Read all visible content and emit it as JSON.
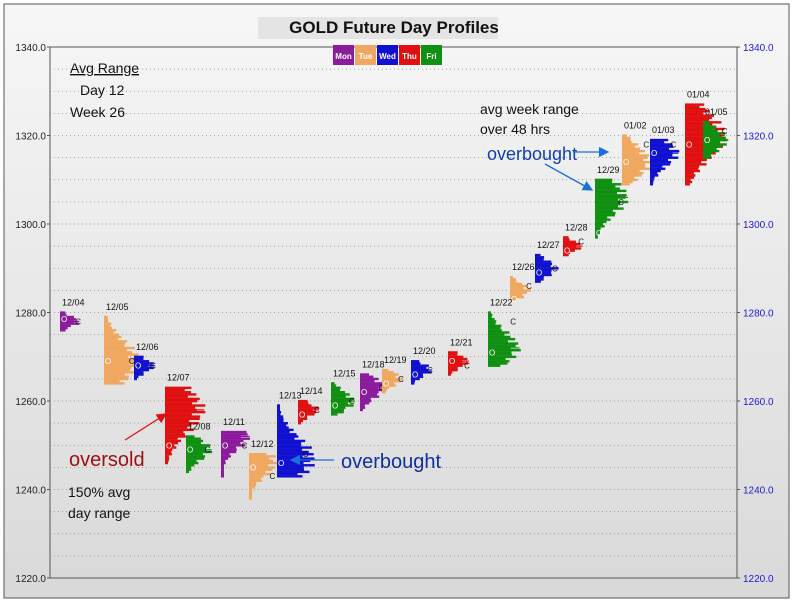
{
  "chart_data": {
    "type": "market-profile",
    "title": "GOLD Future Day Profiles",
    "legend": {
      "placement": "top-center",
      "items": [
        {
          "label": "Mon",
          "color": "#8b1a9c"
        },
        {
          "label": "Tue",
          "color": "#f0a860"
        },
        {
          "label": "Wed",
          "color": "#1010d0"
        },
        {
          "label": "Thu",
          "color": "#e01010"
        },
        {
          "label": "Fri",
          "color": "#109010"
        }
      ]
    },
    "ylim": [
      1220,
      1340
    ],
    "yticks": [
      "1220.0",
      "1240.0",
      "1260.0",
      "1280.0",
      "1300.0",
      "1320.0",
      "1340.0"
    ],
    "grid": true,
    "days": [
      {
        "date": "12/04",
        "weekday": "Mon",
        "high": 1280.0,
        "low": 1276.0,
        "poc": 1278.0,
        "open": 1278.5,
        "close": 1278.0
      },
      {
        "date": "12/05",
        "weekday": "Tue",
        "high": 1279.0,
        "low": 1264.0,
        "poc": 1269.0,
        "open": 1269.0,
        "close": 1269.0
      },
      {
        "date": "12/06",
        "weekday": "Wed",
        "high": 1270.0,
        "low": 1265.0,
        "poc": 1268.0,
        "open": 1268.0,
        "close": 1268.0
      },
      {
        "date": "12/07",
        "weekday": "Thu",
        "high": 1263.0,
        "low": 1246.0,
        "poc": 1258.0,
        "open": 1250.0,
        "close": 1249.0
      },
      {
        "date": "12/08",
        "weekday": "Fri",
        "high": 1252.0,
        "low": 1244.0,
        "poc": 1249.0,
        "open": 1249.0,
        "close": 1249.0
      },
      {
        "date": "12/11",
        "weekday": "Mon",
        "high": 1253.0,
        "low": 1243.0,
        "poc": 1252.0,
        "open": 1250.0,
        "close": 1250.0
      },
      {
        "date": "12/12",
        "weekday": "Tue",
        "high": 1248.0,
        "low": 1238.0,
        "poc": 1246.0,
        "open": 1245.0,
        "close": 1243.0
      },
      {
        "date": "12/13",
        "weekday": "Wed",
        "high": 1259.0,
        "low": 1243.0,
        "poc": 1247.0,
        "open": 1246.0,
        "close": 1248.0
      },
      {
        "date": "12/14",
        "weekday": "Thu",
        "high": 1260.0,
        "low": 1255.0,
        "poc": 1258.0,
        "open": 1257.0,
        "close": 1258.0
      },
      {
        "date": "12/15",
        "weekday": "Fri",
        "high": 1264.0,
        "low": 1257.0,
        "poc": 1260.0,
        "open": 1259.0,
        "close": 1260.0
      },
      {
        "date": "12/18",
        "weekday": "Mon",
        "high": 1266.0,
        "low": 1258.0,
        "poc": 1263.0,
        "open": 1262.0,
        "close": 1263.0
      },
      {
        "date": "12/19",
        "weekday": "Tue",
        "high": 1267.0,
        "low": 1262.0,
        "poc": 1265.0,
        "open": 1264.0,
        "close": 1265.0
      },
      {
        "date": "12/20",
        "weekday": "Wed",
        "high": 1269.0,
        "low": 1264.0,
        "poc": 1267.0,
        "open": 1266.0,
        "close": 1267.0
      },
      {
        "date": "12/21",
        "weekday": "Thu",
        "high": 1271.0,
        "low": 1266.0,
        "poc": 1269.0,
        "open": 1269.0,
        "close": 1268.0
      },
      {
        "date": "12/22",
        "weekday": "Fri",
        "high": 1280.0,
        "low": 1268.0,
        "poc": 1272.0,
        "open": 1271.0,
        "close": 1278.0
      },
      {
        "date": "12/26",
        "weekday": "Tue",
        "high": 1288.0,
        "low": 1283.0,
        "poc": 1285.0,
        "open": 1283.0,
        "close": 1286.0
      },
      {
        "date": "12/27",
        "weekday": "Wed",
        "high": 1293.0,
        "low": 1287.0,
        "poc": 1290.0,
        "open": 1289.0,
        "close": 1290.0
      },
      {
        "date": "12/28",
        "weekday": "Thu",
        "high": 1297.0,
        "low": 1293.0,
        "poc": 1295.0,
        "open": 1294.0,
        "close": 1296.0
      },
      {
        "date": "12/29",
        "weekday": "Fri",
        "high": 1310.0,
        "low": 1297.0,
        "poc": 1306.0,
        "open": 1298.0,
        "close": 1305.0
      },
      {
        "date": "01/02",
        "weekday": "Tue",
        "high": 1320.0,
        "low": 1309.0,
        "poc": 1314.0,
        "open": 1314.0,
        "close": 1318.0
      },
      {
        "date": "01/03",
        "weekday": "Wed",
        "high": 1319.0,
        "low": 1309.0,
        "poc": 1316.0,
        "open": 1316.0,
        "close": 1318.0
      },
      {
        "date": "01/04",
        "weekday": "Thu",
        "high": 1327.0,
        "low": 1309.0,
        "poc": 1320.0,
        "open": 1318.0,
        "close": 1320.0
      },
      {
        "date": "01/05",
        "weekday": "Fri",
        "high": 1323.0,
        "low": 1315.0,
        "poc": 1319.0,
        "open": 1319.0,
        "close": 1321.0
      }
    ],
    "annotations": [
      {
        "id": "avg-range-title",
        "text": "Avg Range"
      },
      {
        "id": "avg-range-day",
        "text": "Day 12"
      },
      {
        "id": "avg-range-week",
        "text": "Week 26"
      },
      {
        "id": "oversold",
        "text": "oversold"
      },
      {
        "id": "avg-day-1",
        "text": "150% avg"
      },
      {
        "id": "avg-day-2",
        "text": "day range"
      },
      {
        "id": "overbought-low",
        "text": "overbought"
      },
      {
        "id": "overbought-high",
        "text": "overbought"
      },
      {
        "id": "avg-week-1",
        "text": "avg week range"
      },
      {
        "id": "avg-week-2",
        "text": "over 48 hrs"
      }
    ],
    "open_marker": "O",
    "close_marker": "C"
  }
}
